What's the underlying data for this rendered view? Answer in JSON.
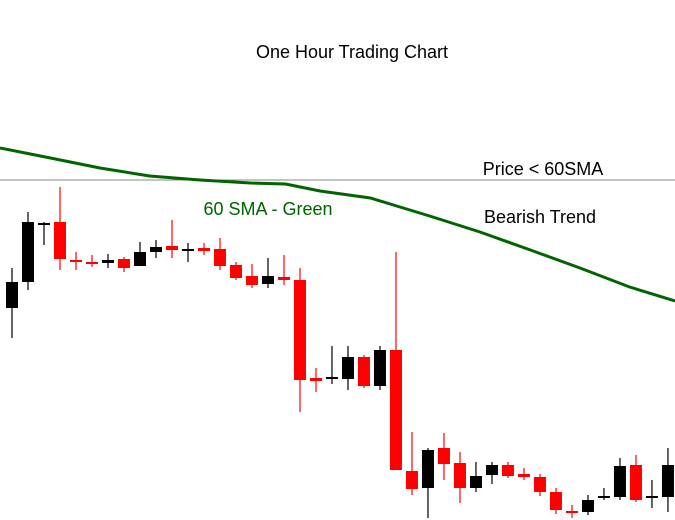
{
  "chart_data": {
    "type": "candlestick",
    "title": "One Hour Trading Chart",
    "annotations": [
      {
        "text": "Price < 60SMA"
      },
      {
        "text": "Bearish Trend"
      },
      {
        "text": "60 SMA - Green",
        "color": "#006400"
      }
    ],
    "up_color": "#000000",
    "down_color": "#ff0000",
    "xlim": [
      -0.75,
      41.44
    ],
    "ylim": [
      0,
      520
    ],
    "open": [
      212,
      238,
      295,
      298,
      260,
      258,
      257,
      261,
      254,
      268,
      274,
      269,
      272,
      271,
      255,
      244,
      236,
      243,
      240,
      142,
      141,
      141,
      163,
      134,
      170,
      49,
      32,
      72,
      57,
      32,
      45,
      55,
      46,
      43,
      28,
      9,
      8,
      22,
      23,
      55,
      22,
      23
    ],
    "high": [
      252,
      308,
      298,
      333,
      268,
      265,
      266,
      263,
      278,
      280,
      300,
      277,
      277,
      282,
      258,
      256,
      262,
      265,
      252,
      152,
      174,
      174,
      165,
      174,
      268,
      88,
      72,
      87,
      68,
      58,
      58,
      58,
      52,
      46,
      32,
      15,
      25,
      32,
      62,
      65,
      40,
      72
    ],
    "low": [
      182,
      230,
      275,
      250,
      250,
      253,
      252,
      248,
      254,
      262,
      262,
      258,
      265,
      250,
      240,
      232,
      232,
      235,
      108,
      128,
      136,
      130,
      132,
      130,
      50,
      25,
      2,
      40,
      17,
      28,
      36,
      42,
      40,
      24,
      6,
      2,
      5,
      20,
      20,
      18,
      12,
      8
    ],
    "close": [
      238,
      298,
      297,
      261,
      258,
      256,
      260,
      252,
      268,
      273,
      270,
      271,
      269,
      254,
      242,
      235,
      244,
      240,
      140,
      139,
      143,
      163,
      134,
      170,
      50,
      31,
      70,
      56,
      32,
      44,
      55,
      44,
      43,
      28,
      10,
      7,
      20,
      24,
      54,
      20,
      24,
      55
    ],
    "sma": {
      "color": "#006400",
      "x": [
        -0.75,
        2.4,
        5.5,
        8.6,
        11.75,
        14.9,
        17.1,
        19.25,
        22.4,
        24.25,
        26.1,
        29.25,
        32.4,
        35.5,
        38.6,
        41.44
      ],
      "values": [
        372,
        362,
        352,
        344,
        340,
        337,
        336,
        329,
        322,
        313,
        304,
        288,
        270,
        252,
        233,
        219
      ]
    },
    "reference_line": {
      "value": 340,
      "color": "#888888"
    }
  }
}
